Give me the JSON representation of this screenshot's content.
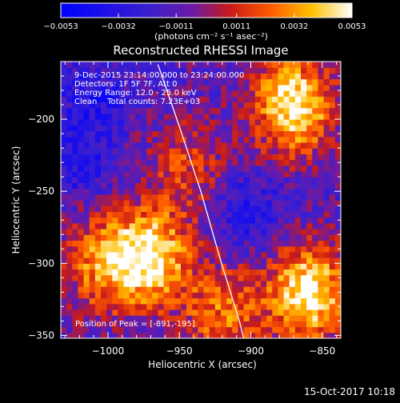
{
  "chart_data": {
    "type": "heatmap",
    "title": "Reconstructed RHESSI Image",
    "xlabel": "Heliocentric X (arcsec)",
    "ylabel": "Heliocentric Y (arcsec)",
    "xlim": [
      -1033,
      -837
    ],
    "ylim": [
      -352,
      -160
    ],
    "xticks": [
      -1000,
      -950,
      -900,
      -850
    ],
    "yticks": [
      -350,
      -300,
      -250,
      -200
    ],
    "xtick_labels": [
      "−1000",
      "−950",
      "−900",
      "−850"
    ],
    "ytick_labels": [
      "−350",
      "−300",
      "−250",
      "−200"
    ],
    "colorbar": {
      "min": -0.0053,
      "max": 0.0053,
      "tick_values": [
        -0.0053,
        -0.0032,
        -0.0011,
        0.0011,
        0.0032,
        0.0053
      ],
      "tick_labels": [
        "−0.0053",
        "−0.0032",
        "−0.0011",
        "0.0011",
        "0.0032",
        "0.0053"
      ],
      "unit_label": "(photons cm⁻² s⁻¹ asec⁻²)",
      "colormap": "blue-purple-red-yellow-white"
    },
    "annotations": [
      "9-Dec-2015 23:14:00.000 to 23:24:00.000",
      "Detectors: 1F 5F 7F, Att 0",
      "Energy Range: 12.0 - 25.0 keV",
      "Clean    Total counts: 7.23E+03"
    ],
    "peak_label": "Position of Peak = [-891,-195]",
    "limb_curve": [
      [
        -965,
        -162
      ],
      [
        -950,
        -205
      ],
      [
        -935,
        -250
      ],
      [
        -922,
        -295
      ],
      [
        -908,
        -340
      ],
      [
        -905,
        -352
      ]
    ],
    "hot_regions": [
      {
        "x": -870,
        "y": -190,
        "strength": 1.0
      },
      {
        "x": -860,
        "y": -320,
        "strength": 1.0
      },
      {
        "x": -970,
        "y": -295,
        "strength": 0.95
      },
      {
        "x": -1005,
        "y": -300,
        "strength": 0.6
      },
      {
        "x": -920,
        "y": -335,
        "strength": 0.55
      },
      {
        "x": -945,
        "y": -230,
        "strength": 0.4
      }
    ],
    "cold_regions": [
      {
        "x": -1010,
        "y": -185
      },
      {
        "x": -900,
        "y": -265
      },
      {
        "x": -1020,
        "y": -230
      }
    ]
  },
  "footer": {
    "timestamp": "15-Oct-2017 10:18"
  }
}
